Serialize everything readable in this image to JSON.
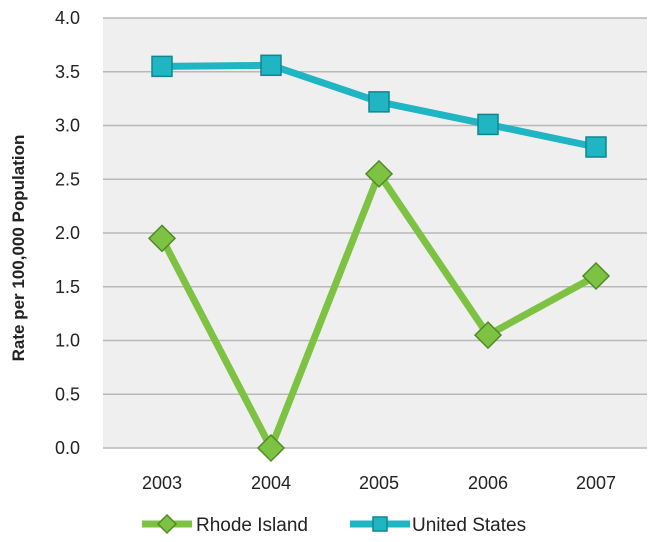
{
  "chart_data": {
    "type": "line",
    "ylabel": "Rate per 100,000 Population",
    "xlabel": "",
    "categories": [
      "2003",
      "2004",
      "2005",
      "2006",
      "2007"
    ],
    "ylim": [
      0.0,
      4.0
    ],
    "yticks": [
      "0.0",
      "0.5",
      "1.0",
      "1.5",
      "2.0",
      "2.5",
      "3.0",
      "3.5",
      "4.0"
    ],
    "grid": true,
    "legend_position": "bottom",
    "series": [
      {
        "name": "Rhode Island",
        "values": [
          1.95,
          0.0,
          2.55,
          1.05,
          1.6
        ],
        "color": "#7dc242",
        "marker": "diamond"
      },
      {
        "name": "United States",
        "values": [
          3.55,
          3.56,
          3.22,
          3.01,
          2.8
        ],
        "color": "#1fb5c2",
        "marker": "square"
      }
    ]
  }
}
